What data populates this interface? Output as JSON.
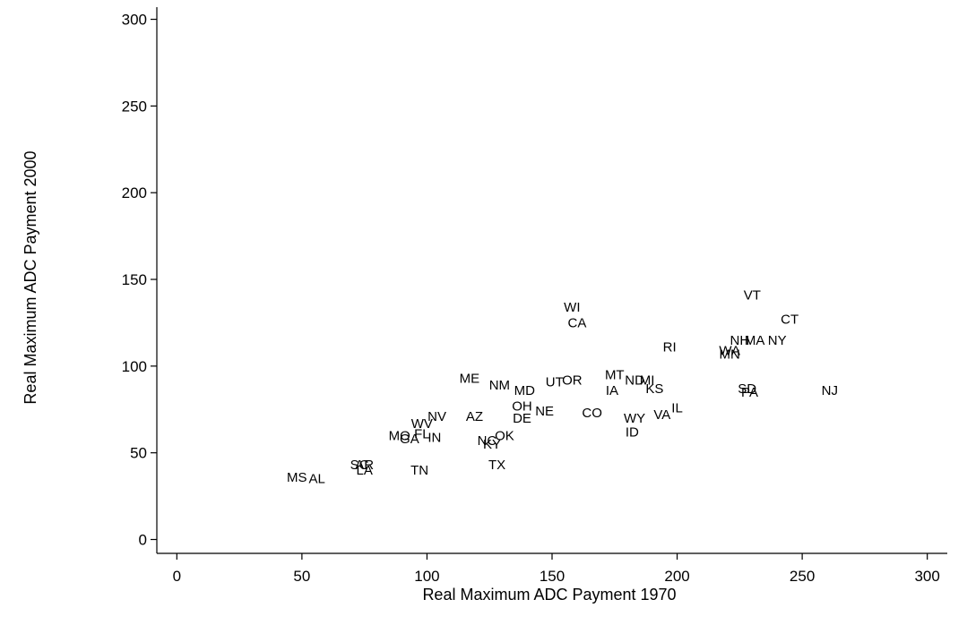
{
  "chart_data": {
    "type": "scatter",
    "title": "",
    "xlabel": "Real Maximum ADC Payment 1970",
    "ylabel": "Real Maximum ADC Payment 2000",
    "xlim": [
      -8,
      308
    ],
    "ylim": [
      -8,
      307
    ],
    "xticks": [
      "0",
      "50",
      "100",
      "150",
      "200",
      "250",
      "300"
    ],
    "yticks": [
      "0",
      "50",
      "100",
      "150",
      "200",
      "250",
      "300"
    ],
    "grid": false,
    "marker": "state abbreviation text labels",
    "points": [
      {
        "label": "MS",
        "x": 48,
        "y": 36
      },
      {
        "label": "AL",
        "x": 56,
        "y": 35
      },
      {
        "label": "SC",
        "x": 73,
        "y": 43
      },
      {
        "label": "AR",
        "x": 75,
        "y": 43
      },
      {
        "label": "LA",
        "x": 75,
        "y": 40
      },
      {
        "label": "TN",
        "x": 97,
        "y": 40
      },
      {
        "label": "MO",
        "x": 89,
        "y": 60
      },
      {
        "label": "GA",
        "x": 93,
        "y": 58
      },
      {
        "label": "FL",
        "x": 98,
        "y": 61
      },
      {
        "label": "IN",
        "x": 103,
        "y": 59
      },
      {
        "label": "WV",
        "x": 98,
        "y": 67
      },
      {
        "label": "NV",
        "x": 104,
        "y": 71
      },
      {
        "label": "AZ",
        "x": 119,
        "y": 71
      },
      {
        "label": "NC",
        "x": 124,
        "y": 57
      },
      {
        "label": "KY",
        "x": 126,
        "y": 55
      },
      {
        "label": "OK",
        "x": 131,
        "y": 60
      },
      {
        "label": "TX",
        "x": 128,
        "y": 43
      },
      {
        "label": "ME",
        "x": 117,
        "y": 93
      },
      {
        "label": "NM",
        "x": 129,
        "y": 89
      },
      {
        "label": "MD",
        "x": 139,
        "y": 86
      },
      {
        "label": "OH",
        "x": 138,
        "y": 77
      },
      {
        "label": "DE",
        "x": 138,
        "y": 70
      },
      {
        "label": "NE",
        "x": 147,
        "y": 74
      },
      {
        "label": "UT",
        "x": 151,
        "y": 91
      },
      {
        "label": "OR",
        "x": 158,
        "y": 92
      },
      {
        "label": "WI",
        "x": 158,
        "y": 134
      },
      {
        "label": "CA",
        "x": 160,
        "y": 125
      },
      {
        "label": "CO",
        "x": 166,
        "y": 73
      },
      {
        "label": "MT",
        "x": 175,
        "y": 95
      },
      {
        "label": "IA",
        "x": 174,
        "y": 86
      },
      {
        "label": "ND",
        "x": 183,
        "y": 92
      },
      {
        "label": "MI",
        "x": 188,
        "y": 92
      },
      {
        "label": "KS",
        "x": 191,
        "y": 87
      },
      {
        "label": "WY",
        "x": 183,
        "y": 70
      },
      {
        "label": "ID",
        "x": 182,
        "y": 62
      },
      {
        "label": "VA",
        "x": 194,
        "y": 72
      },
      {
        "label": "IL",
        "x": 200,
        "y": 76
      },
      {
        "label": "RI",
        "x": 197,
        "y": 111
      },
      {
        "label": "VT",
        "x": 230,
        "y": 141
      },
      {
        "label": "CT",
        "x": 245,
        "y": 127
      },
      {
        "label": "NH",
        "x": 225,
        "y": 115
      },
      {
        "label": "MA",
        "x": 231,
        "y": 115
      },
      {
        "label": "NY",
        "x": 240,
        "y": 115
      },
      {
        "label": "WA",
        "x": 221,
        "y": 109
      },
      {
        "label": "MN",
        "x": 221,
        "y": 107
      },
      {
        "label": "SD",
        "x": 228,
        "y": 87
      },
      {
        "label": "PA",
        "x": 229,
        "y": 85
      },
      {
        "label": "NJ",
        "x": 261,
        "y": 86
      }
    ]
  }
}
